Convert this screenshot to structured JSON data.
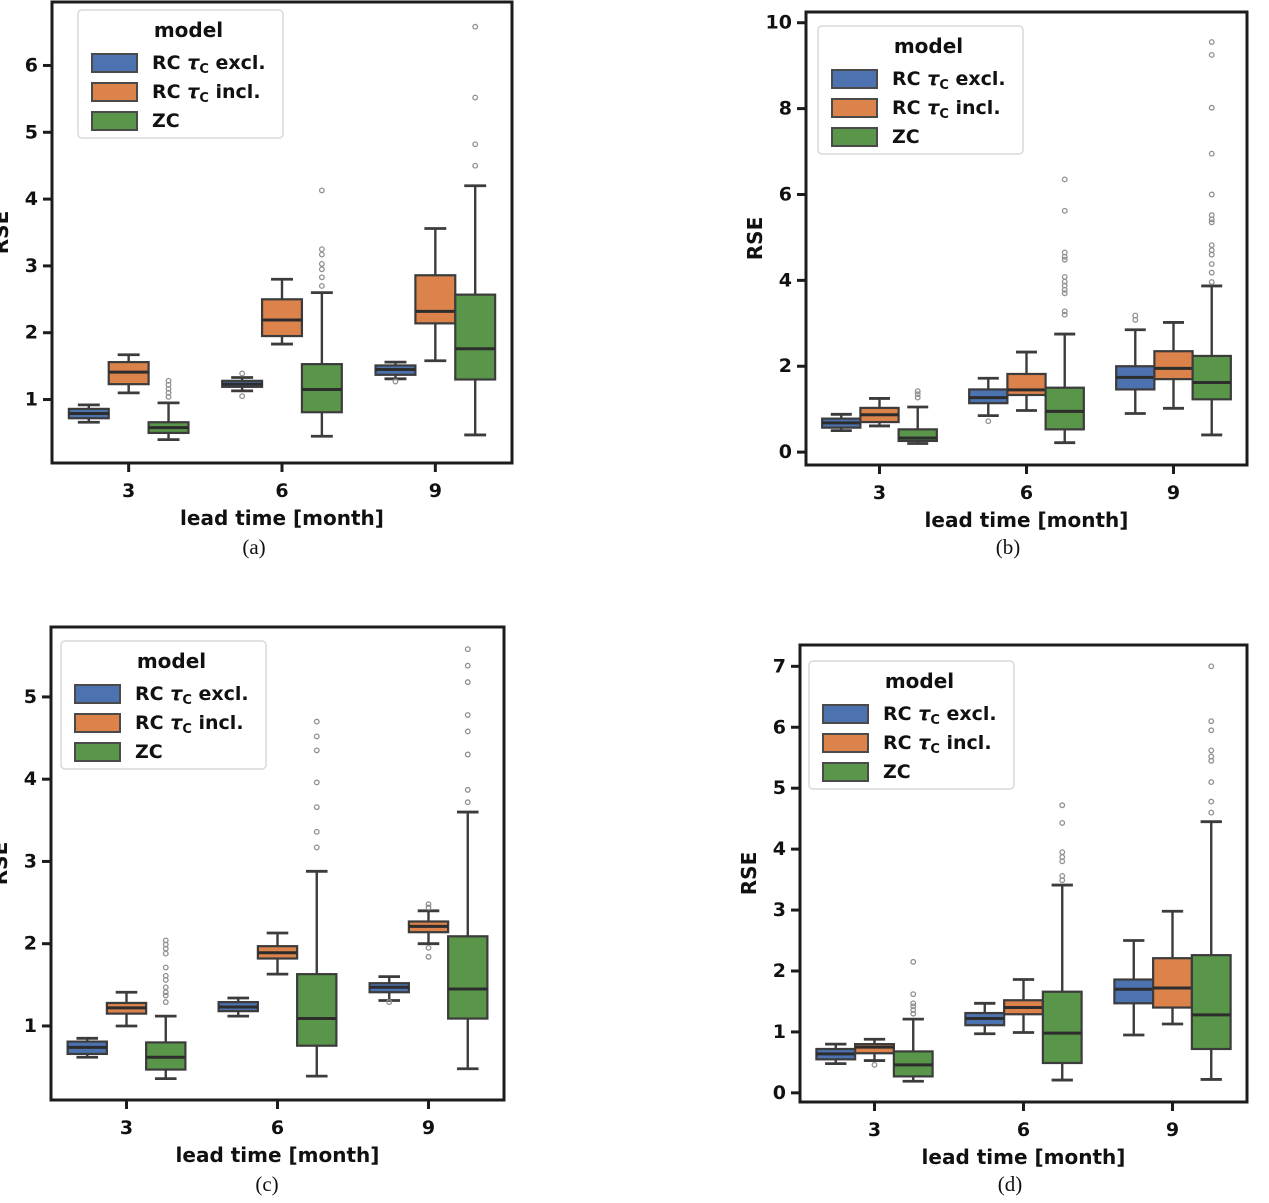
{
  "figure": {
    "background": "#ffffff",
    "spine_color": "#1c1c1c",
    "box_edge_color": "#3c3c3c",
    "median_color": "#2d2d2d",
    "flier_color": "#909090",
    "legend_border_color": "#d9d9d9",
    "series_colors": [
      "#4C72B0",
      "#DB834B",
      "#5A964A"
    ]
  },
  "chart_data": [
    {
      "type": "boxplot",
      "caption": "(a)",
      "title": "",
      "xlabel": "lead time [month]",
      "ylabel": "RSE",
      "categories": [
        "3",
        "6",
        "9"
      ],
      "ylim": [
        0.05,
        6.95
      ],
      "yticks": [
        1,
        2,
        3,
        4,
        5,
        6
      ],
      "grid": false,
      "legend": {
        "title": "model",
        "position": "upper left"
      },
      "series": [
        {
          "name": "RC τ_C excl.",
          "color": "#4C72B0",
          "boxes": [
            {
              "whislo": 0.66,
              "q1": 0.72,
              "med": 0.79,
              "q3": 0.86,
              "whishi": 0.92,
              "fliers": []
            },
            {
              "whislo": 1.13,
              "q1": 1.19,
              "med": 1.23,
              "q3": 1.28,
              "whishi": 1.33,
              "fliers": [
                1.39,
                1.05
              ]
            },
            {
              "whislo": 1.31,
              "q1": 1.37,
              "med": 1.45,
              "q3": 1.51,
              "whishi": 1.56,
              "fliers": [
                1.27
              ]
            }
          ]
        },
        {
          "name": "RC τ_C incl.",
          "color": "#DB834B",
          "boxes": [
            {
              "whislo": 1.1,
              "q1": 1.23,
              "med": 1.41,
              "q3": 1.56,
              "whishi": 1.67,
              "fliers": []
            },
            {
              "whislo": 1.83,
              "q1": 1.95,
              "med": 2.19,
              "q3": 2.5,
              "whishi": 2.8,
              "fliers": []
            },
            {
              "whislo": 1.58,
              "q1": 2.14,
              "med": 2.32,
              "q3": 2.86,
              "whishi": 3.56,
              "fliers": []
            }
          ]
        },
        {
          "name": "ZC",
          "color": "#5A964A",
          "boxes": [
            {
              "whislo": 0.4,
              "q1": 0.5,
              "med": 0.58,
              "q3": 0.66,
              "whishi": 0.95,
              "fliers": [
                1.28,
                1.22,
                1.16,
                1.1,
                1.04
              ]
            },
            {
              "whislo": 0.45,
              "q1": 0.81,
              "med": 1.15,
              "q3": 1.53,
              "whishi": 2.6,
              "fliers": [
                4.13,
                3.25,
                3.17,
                3.03,
                2.95,
                2.83,
                2.7
              ]
            },
            {
              "whislo": 0.47,
              "q1": 1.3,
              "med": 1.76,
              "q3": 2.57,
              "whishi": 4.2,
              "fliers": [
                6.58,
                5.52,
                4.82,
                4.5
              ]
            }
          ]
        }
      ]
    },
    {
      "type": "boxplot",
      "caption": "(b)",
      "title": "",
      "xlabel": "lead time [month]",
      "ylabel": "RSE",
      "categories": [
        "3",
        "6",
        "9"
      ],
      "ylim": [
        -0.3,
        10.25
      ],
      "yticks": [
        0,
        2,
        4,
        6,
        8,
        10
      ],
      "grid": false,
      "legend": {
        "title": "model",
        "position": "upper left"
      },
      "series": [
        {
          "name": "RC τ_C excl.",
          "color": "#4C72B0",
          "boxes": [
            {
              "whislo": 0.5,
              "q1": 0.57,
              "med": 0.68,
              "q3": 0.78,
              "whishi": 0.88,
              "fliers": []
            },
            {
              "whislo": 0.85,
              "q1": 1.14,
              "med": 1.27,
              "q3": 1.46,
              "whishi": 1.72,
              "fliers": [
                0.72
              ]
            },
            {
              "whislo": 0.9,
              "q1": 1.46,
              "med": 1.74,
              "q3": 2.0,
              "whishi": 2.85,
              "fliers": [
                3.18,
                3.08
              ]
            }
          ]
        },
        {
          "name": "RC τ_C incl.",
          "color": "#DB834B",
          "boxes": [
            {
              "whislo": 0.61,
              "q1": 0.7,
              "med": 0.87,
              "q3": 1.03,
              "whishi": 1.25,
              "fliers": []
            },
            {
              "whislo": 0.97,
              "q1": 1.33,
              "med": 1.45,
              "q3": 1.82,
              "whishi": 2.33,
              "fliers": []
            },
            {
              "whislo": 1.02,
              "q1": 1.7,
              "med": 1.95,
              "q3": 2.35,
              "whishi": 3.02,
              "fliers": []
            }
          ]
        },
        {
          "name": "ZC",
          "color": "#5A964A",
          "boxes": [
            {
              "whislo": 0.2,
              "q1": 0.26,
              "med": 0.33,
              "q3": 0.53,
              "whishi": 1.05,
              "fliers": [
                1.42,
                1.35,
                1.27
              ]
            },
            {
              "whislo": 0.22,
              "q1": 0.53,
              "med": 0.95,
              "q3": 1.5,
              "whishi": 2.75,
              "fliers": [
                6.35,
                5.62,
                4.65,
                4.55,
                4.48,
                4.08,
                3.97,
                3.88,
                3.78,
                3.7,
                3.28,
                3.2
              ]
            },
            {
              "whislo": 0.4,
              "q1": 1.23,
              "med": 1.62,
              "q3": 2.24,
              "whishi": 3.87,
              "fliers": [
                9.55,
                9.25,
                8.02,
                6.95,
                6.0,
                5.52,
                5.42,
                5.35,
                4.82,
                4.7,
                4.6,
                4.38,
                4.18,
                3.96
              ]
            }
          ]
        }
      ]
    },
    {
      "type": "boxplot",
      "caption": "(c)",
      "title": "",
      "xlabel": "lead time [month]",
      "ylabel": "RSE",
      "categories": [
        "3",
        "6",
        "9"
      ],
      "ylim": [
        0.1,
        5.85
      ],
      "yticks": [
        1,
        2,
        3,
        4,
        5
      ],
      "grid": false,
      "legend": {
        "title": "model",
        "position": "upper left"
      },
      "series": [
        {
          "name": "RC τ_C excl.",
          "color": "#4C72B0",
          "boxes": [
            {
              "whislo": 0.62,
              "q1": 0.66,
              "med": 0.74,
              "q3": 0.81,
              "whishi": 0.85,
              "fliers": []
            },
            {
              "whislo": 1.12,
              "q1": 1.18,
              "med": 1.23,
              "q3": 1.29,
              "whishi": 1.34,
              "fliers": []
            },
            {
              "whislo": 1.31,
              "q1": 1.41,
              "med": 1.47,
              "q3": 1.52,
              "whishi": 1.6,
              "fliers": [
                1.29
              ]
            }
          ]
        },
        {
          "name": "RC τ_C incl.",
          "color": "#DB834B",
          "boxes": [
            {
              "whislo": 1.0,
              "q1": 1.15,
              "med": 1.22,
              "q3": 1.28,
              "whishi": 1.41,
              "fliers": []
            },
            {
              "whislo": 1.63,
              "q1": 1.82,
              "med": 1.89,
              "q3": 1.97,
              "whishi": 2.13,
              "fliers": []
            },
            {
              "whislo": 2.0,
              "q1": 2.14,
              "med": 2.21,
              "q3": 2.27,
              "whishi": 2.4,
              "fliers": [
                2.48,
                2.44,
                1.95,
                1.84
              ]
            }
          ]
        },
        {
          "name": "ZC",
          "color": "#5A964A",
          "boxes": [
            {
              "whislo": 0.36,
              "q1": 0.47,
              "med": 0.62,
              "q3": 0.8,
              "whishi": 1.12,
              "fliers": [
                2.04,
                1.99,
                1.94,
                1.88,
                1.71,
                1.61,
                1.56,
                1.47,
                1.41,
                1.37,
                1.29
              ]
            },
            {
              "whislo": 0.39,
              "q1": 0.76,
              "med": 1.09,
              "q3": 1.63,
              "whishi": 2.88,
              "fliers": [
                4.7,
                4.52,
                4.35,
                3.96,
                3.66,
                3.36,
                3.17
              ]
            },
            {
              "whislo": 0.48,
              "q1": 1.09,
              "med": 1.45,
              "q3": 2.09,
              "whishi": 3.6,
              "fliers": [
                5.58,
                5.38,
                5.18,
                4.78,
                4.58,
                4.3,
                3.87,
                3.72
              ]
            }
          ]
        }
      ]
    },
    {
      "type": "boxplot",
      "caption": "(d)",
      "title": "",
      "xlabel": "lead time [month]",
      "ylabel": "RSE",
      "categories": [
        "3",
        "6",
        "9"
      ],
      "ylim": [
        -0.15,
        7.35
      ],
      "yticks": [
        0,
        1,
        2,
        3,
        4,
        5,
        6,
        7
      ],
      "grid": false,
      "legend": {
        "title": "model",
        "position": "upper left"
      },
      "series": [
        {
          "name": "RC τ_C excl.",
          "color": "#4C72B0",
          "boxes": [
            {
              "whislo": 0.48,
              "q1": 0.55,
              "med": 0.64,
              "q3": 0.72,
              "whishi": 0.8,
              "fliers": []
            },
            {
              "whislo": 0.97,
              "q1": 1.11,
              "med": 1.22,
              "q3": 1.31,
              "whishi": 1.47,
              "fliers": []
            },
            {
              "whislo": 0.95,
              "q1": 1.47,
              "med": 1.7,
              "q3": 1.86,
              "whishi": 2.5,
              "fliers": []
            }
          ]
        },
        {
          "name": "RC τ_C incl.",
          "color": "#DB834B",
          "boxes": [
            {
              "whislo": 0.53,
              "q1": 0.65,
              "med": 0.75,
              "q3": 0.8,
              "whishi": 0.88,
              "fliers": [
                0.46
              ]
            },
            {
              "whislo": 0.99,
              "q1": 1.29,
              "med": 1.4,
              "q3": 1.52,
              "whishi": 1.86,
              "fliers": []
            },
            {
              "whislo": 1.13,
              "q1": 1.4,
              "med": 1.72,
              "q3": 2.21,
              "whishi": 2.98,
              "fliers": []
            }
          ]
        },
        {
          "name": "ZC",
          "color": "#5A964A",
          "boxes": [
            {
              "whislo": 0.19,
              "q1": 0.27,
              "med": 0.46,
              "q3": 0.68,
              "whishi": 1.21,
              "fliers": [
                2.15,
                1.62,
                1.47,
                1.42,
                1.36,
                1.3
              ]
            },
            {
              "whislo": 0.21,
              "q1": 0.49,
              "med": 0.98,
              "q3": 1.66,
              "whishi": 3.41,
              "fliers": [
                4.72,
                4.43,
                3.95,
                3.87,
                3.8,
                3.56,
                3.49
              ]
            },
            {
              "whislo": 0.22,
              "q1": 0.72,
              "med": 1.28,
              "q3": 2.26,
              "whishi": 4.45,
              "fliers": [
                7.0,
                6.1,
                5.95,
                5.62,
                5.52,
                5.45,
                5.1,
                4.78,
                4.6
              ]
            }
          ]
        }
      ]
    }
  ]
}
